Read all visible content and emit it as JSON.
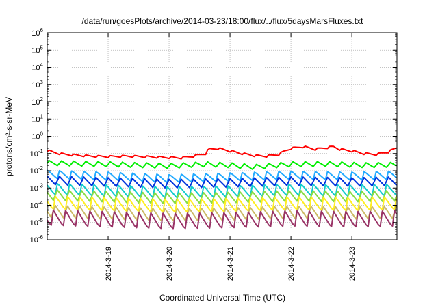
{
  "chart_data": {
    "type": "line",
    "title": "/data/run/goesPlots/archive/2014-03-23/18:00/flux/../flux/5daysMarsFluxes.txt",
    "xlabel": "Coordinated Universal Time (UTC)",
    "ylabel": "protons/cm²-s-sr-MeV",
    "y_scale": "log",
    "ylim_exp": [
      -6,
      6
    ],
    "y_ticks": [
      "10^-6",
      "10^-5",
      "10^-4",
      "10^-3",
      "10^-2",
      "10^-1",
      "10^0",
      "10^1",
      "10^2",
      "10^3",
      "10^4",
      "10^5",
      "10^6"
    ],
    "xlim_days": [
      0,
      5.74
    ],
    "x_tick_days": [
      1,
      2,
      3,
      4,
      5
    ],
    "x_tick_labels": [
      "2014-3-19",
      "2014-3-20",
      "2014-3-21",
      "2014-3-22",
      "2014-3-23"
    ],
    "grid": true,
    "legend": "none",
    "series": [
      {
        "color": "#ff0000",
        "log_points": [
          [
            0.0,
            -0.82
          ],
          [
            0.1,
            -0.92
          ],
          [
            0.2,
            -1.0
          ],
          [
            0.3,
            -1.05
          ],
          [
            0.5,
            -1.1
          ],
          [
            0.7,
            -1.15
          ],
          [
            1.0,
            -1.18
          ],
          [
            1.3,
            -1.15
          ],
          [
            1.6,
            -1.18
          ],
          [
            1.9,
            -1.22
          ],
          [
            2.2,
            -1.25
          ],
          [
            2.4,
            -1.15
          ],
          [
            2.6,
            -1.0
          ],
          [
            2.65,
            -0.75
          ],
          [
            2.8,
            -0.7
          ],
          [
            3.0,
            -0.85
          ],
          [
            3.2,
            -1.0
          ],
          [
            3.4,
            -1.12
          ],
          [
            3.6,
            -1.15
          ],
          [
            3.8,
            -1.05
          ],
          [
            3.9,
            -0.85
          ],
          [
            4.0,
            -0.7
          ],
          [
            4.2,
            -0.6
          ],
          [
            4.4,
            -0.75
          ],
          [
            4.6,
            -0.65
          ],
          [
            4.7,
            -0.6
          ],
          [
            4.8,
            -0.75
          ],
          [
            5.0,
            -0.85
          ],
          [
            5.2,
            -1.0
          ],
          [
            5.4,
            -1.05
          ],
          [
            5.6,
            -0.9
          ],
          [
            5.74,
            -0.65
          ]
        ],
        "sawtooth_amp": 0.12,
        "sawtooth_period": 0.2
      },
      {
        "color": "#00ee00",
        "log_points": [
          [
            0.0,
            -1.55
          ],
          [
            1.0,
            -1.62
          ],
          [
            2.0,
            -1.72
          ],
          [
            2.6,
            -1.62
          ],
          [
            3.0,
            -1.68
          ],
          [
            3.4,
            -1.78
          ],
          [
            4.0,
            -1.62
          ],
          [
            4.6,
            -1.6
          ],
          [
            5.2,
            -1.68
          ],
          [
            5.74,
            -1.65
          ]
        ],
        "sawtooth_amp": 0.35,
        "sawtooth_period": 0.2
      },
      {
        "color": "#22aaff",
        "log_points": [
          [
            0.0,
            -2.2
          ],
          [
            1.0,
            -2.3
          ],
          [
            2.0,
            -2.45
          ],
          [
            3.0,
            -2.35
          ],
          [
            4.0,
            -2.25
          ],
          [
            5.0,
            -2.3
          ],
          [
            5.74,
            -2.25
          ]
        ],
        "sawtooth_amp": 0.5,
        "sawtooth_period": 0.2
      },
      {
        "color": "#0033dd",
        "log_points": [
          [
            0.0,
            -2.55
          ],
          [
            1.0,
            -2.65
          ],
          [
            2.0,
            -2.75
          ],
          [
            3.0,
            -2.7
          ],
          [
            4.0,
            -2.6
          ],
          [
            5.0,
            -2.65
          ],
          [
            5.74,
            -2.6
          ]
        ],
        "sawtooth_amp": 0.6,
        "sawtooth_period": 0.2
      },
      {
        "color": "#11cccc",
        "log_points": [
          [
            0.0,
            -3.05
          ],
          [
            1.0,
            -3.15
          ],
          [
            2.0,
            -3.25
          ],
          [
            3.0,
            -3.2
          ],
          [
            4.0,
            -3.1
          ],
          [
            5.0,
            -3.15
          ],
          [
            5.74,
            -3.1
          ]
        ],
        "sawtooth_amp": 0.7,
        "sawtooth_period": 0.2
      },
      {
        "color": "#88dd44",
        "log_points": [
          [
            0.0,
            -3.4
          ],
          [
            1.0,
            -3.5
          ],
          [
            2.0,
            -3.6
          ],
          [
            3.0,
            -3.55
          ],
          [
            4.0,
            -3.45
          ],
          [
            5.0,
            -3.5
          ],
          [
            5.74,
            -3.45
          ]
        ],
        "sawtooth_amp": 0.75,
        "sawtooth_period": 0.2
      },
      {
        "color": "#ffee22",
        "log_points": [
          [
            0.0,
            -3.85
          ],
          [
            1.0,
            -3.95
          ],
          [
            2.0,
            -4.05
          ],
          [
            3.0,
            -4.0
          ],
          [
            4.0,
            -3.9
          ],
          [
            5.0,
            -3.95
          ],
          [
            5.74,
            -3.9
          ]
        ],
        "sawtooth_amp": 0.8,
        "sawtooth_period": 0.2
      },
      {
        "color": "#ccbb66",
        "log_points": [
          [
            0.0,
            -4.35
          ],
          [
            1.0,
            -4.45
          ],
          [
            2.0,
            -4.55
          ],
          [
            3.0,
            -4.5
          ],
          [
            4.0,
            -4.4
          ],
          [
            5.0,
            -4.45
          ],
          [
            5.74,
            -4.4
          ]
        ],
        "sawtooth_amp": 0.85,
        "sawtooth_period": 0.2
      },
      {
        "color": "#993366",
        "log_points": [
          [
            0.0,
            -4.75
          ],
          [
            1.0,
            -4.85
          ],
          [
            2.0,
            -4.95
          ],
          [
            3.0,
            -4.9
          ],
          [
            4.0,
            -4.8
          ],
          [
            5.0,
            -4.85
          ],
          [
            5.74,
            -4.8
          ]
        ],
        "sawtooth_amp": 0.95,
        "sawtooth_period": 0.2
      }
    ]
  }
}
